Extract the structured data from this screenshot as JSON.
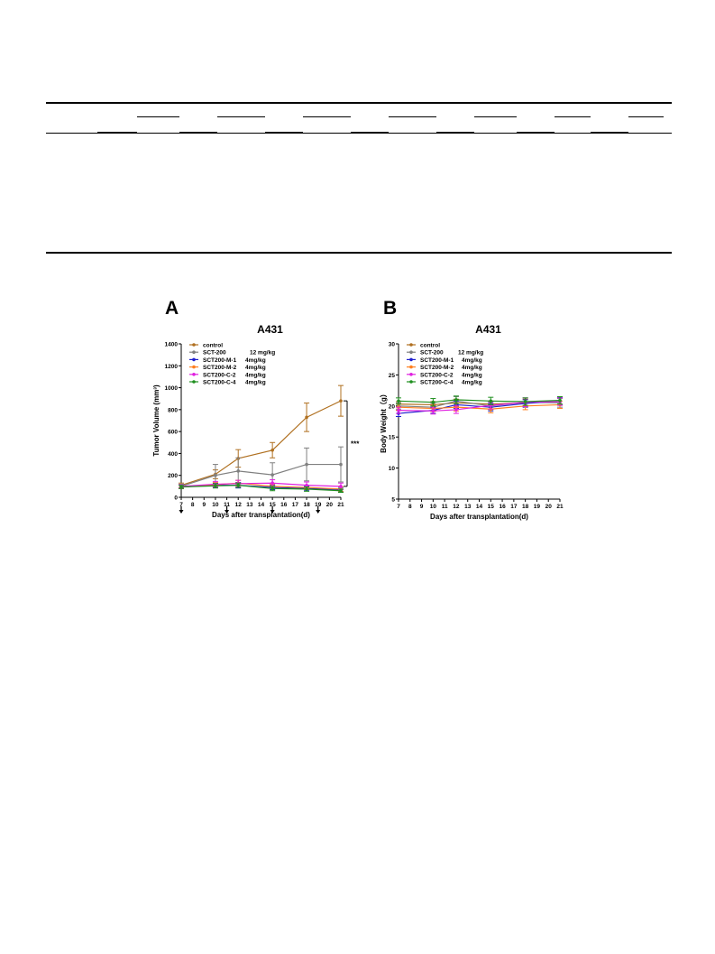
{
  "table": {
    "subheader_groups": 7,
    "subheader_cells": 14,
    "body_rows": []
  },
  "panels": {
    "a_letter": "A",
    "b_letter": "B"
  },
  "chart_data": [
    {
      "type": "line",
      "title": "A431",
      "xlabel": "Days after transplantation(d)",
      "ylabel": "Tumor Volume (mm³)",
      "ylim": [
        0,
        1400
      ],
      "xlim": [
        7,
        21
      ],
      "xticks": [
        7,
        8,
        9,
        10,
        11,
        12,
        13,
        14,
        15,
        16,
        17,
        18,
        19,
        20,
        21
      ],
      "yticks": [
        0,
        200,
        400,
        600,
        800,
        1000,
        1200,
        1400
      ],
      "legend_position": "top-left",
      "dosing_days": [
        7,
        11,
        15,
        19
      ],
      "significance": {
        "label": "***",
        "from_y": 880,
        "to_y": 100
      },
      "x": [
        7,
        10,
        12,
        15,
        18,
        21
      ],
      "series": [
        {
          "name": "control",
          "dose": "",
          "color": "#b07020",
          "values": [
            110,
            210,
            355,
            430,
            730,
            880
          ],
          "err": [
            20,
            40,
            80,
            70,
            130,
            140
          ]
        },
        {
          "name": "SCT-200",
          "dose": "12 mg/kg",
          "color": "#808080",
          "values": [
            100,
            200,
            240,
            205,
            300,
            300
          ],
          "err": [
            20,
            100,
            120,
            110,
            150,
            160
          ]
        },
        {
          "name": "SCT200-M-1",
          "dose": "4mg/kg",
          "color": "#1f1fcf",
          "values": [
            95,
            110,
            110,
            90,
            80,
            70
          ],
          "err": [
            15,
            20,
            25,
            20,
            20,
            20
          ]
        },
        {
          "name": "SCT200-M-2",
          "dose": "4mg/kg",
          "color": "#ff7f1f",
          "values": [
            95,
            115,
            130,
            100,
            90,
            75
          ],
          "err": [
            15,
            20,
            25,
            20,
            20,
            20
          ]
        },
        {
          "name": "SCT200-C-2",
          "dose": "4mg/kg",
          "color": "#e020e0",
          "values": [
            100,
            120,
            125,
            130,
            110,
            100
          ],
          "err": [
            15,
            25,
            30,
            30,
            30,
            30
          ]
        },
        {
          "name": "SCT200-C-4",
          "dose": "4mg/kg",
          "color": "#1f8f1f",
          "values": [
            95,
            105,
            110,
            80,
            75,
            60
          ],
          "err": [
            15,
            20,
            20,
            20,
            20,
            15
          ]
        }
      ]
    },
    {
      "type": "line",
      "title": "A431",
      "xlabel": "Days after transplantation(d)",
      "ylabel": "Body Weight（g）",
      "ylim": [
        5,
        30
      ],
      "xlim": [
        7,
        21
      ],
      "xticks": [
        7,
        8,
        9,
        10,
        11,
        12,
        13,
        14,
        15,
        16,
        17,
        18,
        19,
        20,
        21
      ],
      "yticks": [
        5,
        10,
        15,
        20,
        25,
        30
      ],
      "legend_position": "top-left",
      "x": [
        7,
        10,
        12,
        15,
        18,
        21
      ],
      "series": [
        {
          "name": "control",
          "dose": "",
          "color": "#b07020",
          "values": [
            20.3,
            20.2,
            20.5,
            20.3,
            20.5,
            20.8
          ],
          "err": [
            0.4,
            0.5,
            0.6,
            0.5,
            0.6,
            0.6
          ]
        },
        {
          "name": "SCT-200",
          "dose": "12 mg/kg",
          "color": "#808080",
          "values": [
            20.0,
            19.8,
            20.8,
            20.0,
            20.6,
            20.5
          ],
          "err": [
            0.5,
            0.6,
            0.7,
            0.6,
            0.7,
            0.7
          ]
        },
        {
          "name": "SCT200-M-1",
          "dose": "4mg/kg",
          "color": "#1f1fcf",
          "values": [
            18.8,
            19.3,
            20.2,
            19.8,
            20.4,
            20.8
          ],
          "err": [
            0.5,
            0.5,
            0.6,
            0.6,
            0.6,
            0.6
          ]
        },
        {
          "name": "SCT200-M-2",
          "dose": "4mg/kg",
          "color": "#ff7f1f",
          "values": [
            19.8,
            19.6,
            19.8,
            19.5,
            20.0,
            20.2
          ],
          "err": [
            0.5,
            0.5,
            0.6,
            0.6,
            0.6,
            0.6
          ]
        },
        {
          "name": "SCT200-C-2",
          "dose": "4mg/kg",
          "color": "#e020e0",
          "values": [
            19.3,
            19.2,
            19.4,
            20.1,
            20.6,
            20.7
          ],
          "err": [
            0.5,
            0.5,
            0.6,
            0.6,
            0.7,
            0.6
          ]
        },
        {
          "name": "SCT200-C-4",
          "dose": "4mg/kg",
          "color": "#1f8f1f",
          "values": [
            20.8,
            20.6,
            21.0,
            20.8,
            20.7,
            20.9
          ],
          "err": [
            0.5,
            0.6,
            0.6,
            0.6,
            0.6,
            0.6
          ]
        }
      ]
    }
  ]
}
